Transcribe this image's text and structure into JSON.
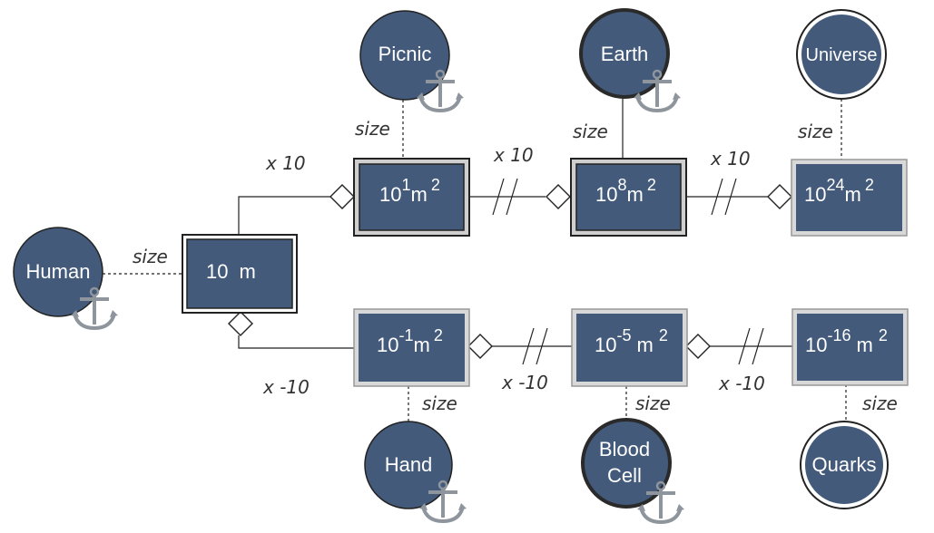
{
  "colors": {
    "node_fill": "#435a7b",
    "box_outer": "#8a8a8a",
    "anchor": "#8e959d"
  },
  "nodes": {
    "human": "Human",
    "picnic": "Picnic",
    "earth": "Earth",
    "universe": "Universe",
    "hand": "Hand",
    "blood_cell_line1": "Blood",
    "blood_cell_line2": "Cell",
    "quarks": "Quarks"
  },
  "boxes": {
    "center": {
      "base": "10",
      "unit": "m",
      "exp": ""
    },
    "picnic": {
      "base": "10",
      "exp": "1",
      "unit": "m",
      "unit_exp": "2"
    },
    "earth": {
      "base": "10",
      "exp": "8",
      "unit": "m",
      "unit_exp": "2"
    },
    "universe": {
      "base": "10",
      "exp": "24",
      "unit": "m",
      "unit_exp": "2"
    },
    "hand": {
      "base": "10",
      "exp": "-1",
      "unit": "m",
      "unit_exp": "2"
    },
    "blood_cell": {
      "base": "10",
      "exp": "-5",
      "unit": "m",
      "unit_exp": "2"
    },
    "quarks": {
      "base": "10",
      "exp": "-16",
      "unit": "m",
      "unit_exp": "2"
    }
  },
  "labels": {
    "size": "size",
    "times_ten": "x 10",
    "times_neg_ten": "x -10"
  },
  "icons": [
    "anchor-icon",
    "diamond-icon"
  ]
}
